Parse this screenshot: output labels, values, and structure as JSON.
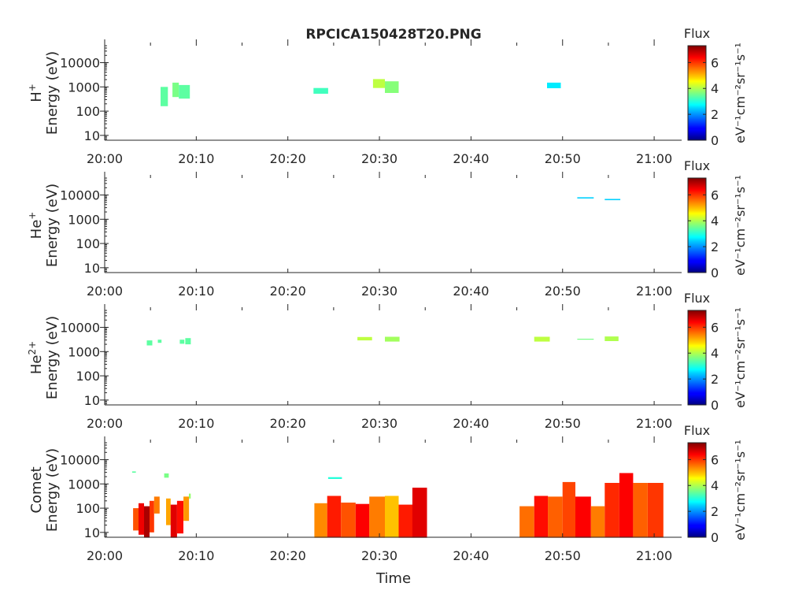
{
  "figure": {
    "title": "RPCICA150428T20.PNG",
    "xlabel": "Time"
  },
  "colorbar": {
    "title": "Flux",
    "label": "eV⁻¹cm⁻²sr⁻¹s⁻¹",
    "ticks": [
      "0",
      "2",
      "4",
      "6"
    ],
    "range": [
      0,
      7.3
    ],
    "colormap": "jet"
  },
  "chart_data": [
    {
      "type": "heatmap",
      "species": "H",
      "species_sup": "+",
      "ylabel": "Energy (eV)",
      "xticks": [
        "20:00",
        "20:10",
        "20:20",
        "20:30",
        "20:40",
        "20:50",
        "21:00"
      ],
      "yticks": [
        "10",
        "100",
        "1000",
        "10000"
      ],
      "xlim_minutes": [
        0,
        63
      ],
      "ylim_log10": [
        0.8,
        4.7
      ],
      "patches": [
        {
          "t0": 6.1,
          "t1": 6.9,
          "e0": 160,
          "e1": 1000,
          "level": 3.4
        },
        {
          "t0": 7.4,
          "t1": 8.1,
          "e0": 380,
          "e1": 1500,
          "level": 3.6
        },
        {
          "t0": 8.1,
          "t1": 9.3,
          "e0": 330,
          "e1": 1200,
          "level": 3.4
        },
        {
          "t0": 22.8,
          "t1": 24.4,
          "e0": 520,
          "e1": 900,
          "level": 3.2
        },
        {
          "t0": 29.3,
          "t1": 30.6,
          "e0": 900,
          "e1": 2100,
          "level": 4.1
        },
        {
          "t0": 30.6,
          "t1": 32.1,
          "e0": 560,
          "e1": 1700,
          "level": 3.7
        },
        {
          "t0": 48.3,
          "t1": 49.8,
          "e0": 880,
          "e1": 1500,
          "level": 2.6
        }
      ]
    },
    {
      "type": "heatmap",
      "species": "He",
      "species_sup": "+",
      "ylabel": "Energy (eV)",
      "xticks": [
        "20:00",
        "20:10",
        "20:20",
        "20:30",
        "20:40",
        "20:50",
        "21:00"
      ],
      "yticks": [
        "10",
        "100",
        "1000",
        "10000"
      ],
      "xlim_minutes": [
        0,
        63
      ],
      "ylim_log10": [
        0.8,
        4.7
      ],
      "patches": [
        {
          "t0": 51.6,
          "t1": 53.4,
          "e0": 7200,
          "e1": 8100,
          "level": 2.4
        },
        {
          "t0": 54.6,
          "t1": 56.3,
          "e0": 6100,
          "e1": 6900,
          "level": 2.4
        }
      ]
    },
    {
      "type": "heatmap",
      "species": "He",
      "species_sup": "2+",
      "ylabel": "Energy (eV)",
      "xticks": [
        "20:00",
        "20:10",
        "20:20",
        "20:30",
        "20:40",
        "20:50",
        "21:00"
      ],
      "yticks": [
        "10",
        "100",
        "1000",
        "10000"
      ],
      "xlim_minutes": [
        0,
        63
      ],
      "ylim_log10": [
        0.8,
        4.7
      ],
      "patches": [
        {
          "t0": 4.6,
          "t1": 5.2,
          "e0": 1800,
          "e1": 2900,
          "level": 3.4
        },
        {
          "t0": 5.8,
          "t1": 6.2,
          "e0": 2300,
          "e1": 3100,
          "level": 3.4
        },
        {
          "t0": 8.2,
          "t1": 8.7,
          "e0": 2100,
          "e1": 3100,
          "level": 3.4
        },
        {
          "t0": 8.8,
          "t1": 9.4,
          "e0": 2000,
          "e1": 3600,
          "level": 3.4
        },
        {
          "t0": 27.6,
          "t1": 29.2,
          "e0": 2900,
          "e1": 4000,
          "level": 4.1
        },
        {
          "t0": 30.6,
          "t1": 32.2,
          "e0": 2600,
          "e1": 4100,
          "level": 3.9
        },
        {
          "t0": 46.9,
          "t1": 48.6,
          "e0": 2600,
          "e1": 4100,
          "level": 4.1
        },
        {
          "t0": 51.6,
          "t1": 53.4,
          "e0": 3100,
          "e1": 3400,
          "level": 3.6
        },
        {
          "t0": 54.6,
          "t1": 56.1,
          "e0": 2700,
          "e1": 4200,
          "level": 4.0
        }
      ]
    },
    {
      "type": "heatmap",
      "species": "Comet",
      "species_sup": "",
      "ylabel": "Energy (eV)",
      "xticks": [
        "20:00",
        "20:10",
        "20:20",
        "20:30",
        "20:40",
        "20:50",
        "21:00"
      ],
      "yticks": [
        "10",
        "100",
        "1000",
        "10000"
      ],
      "xlim_minutes": [
        0,
        63
      ],
      "ylim_log10": [
        0.8,
        4.7
      ],
      "patches": [
        {
          "t0": 3.0,
          "t1": 3.4,
          "e0": 2900,
          "e1": 3300,
          "level": 3.4
        },
        {
          "t0": 3.1,
          "t1": 3.7,
          "e0": 12,
          "e1": 100,
          "level": 5.8
        },
        {
          "t0": 3.7,
          "t1": 4.3,
          "e0": 8,
          "e1": 160,
          "level": 6.5
        },
        {
          "t0": 4.3,
          "t1": 4.9,
          "e0": 6,
          "e1": 120,
          "level": 7.0
        },
        {
          "t0": 4.9,
          "t1": 5.4,
          "e0": 10,
          "e1": 200,
          "level": 6.0
        },
        {
          "t0": 5.4,
          "t1": 6.0,
          "e0": 60,
          "e1": 300,
          "level": 5.5
        },
        {
          "t0": 6.5,
          "t1": 7.0,
          "e0": 1800,
          "e1": 2700,
          "level": 3.6
        },
        {
          "t0": 6.7,
          "t1": 7.2,
          "e0": 20,
          "e1": 250,
          "level": 5.2
        },
        {
          "t0": 7.2,
          "t1": 7.9,
          "e0": 6,
          "e1": 140,
          "level": 6.6
        },
        {
          "t0": 7.9,
          "t1": 8.6,
          "e0": 9,
          "e1": 200,
          "level": 6.3
        },
        {
          "t0": 8.6,
          "t1": 9.2,
          "e0": 30,
          "e1": 300,
          "level": 5.3
        },
        {
          "t0": 9.2,
          "t1": 9.4,
          "e0": 250,
          "e1": 400,
          "level": 3.8
        },
        {
          "t0": 22.9,
          "t1": 24.3,
          "e0": 6,
          "e1": 160,
          "level": 5.4
        },
        {
          "t0": 24.3,
          "t1": 25.8,
          "e0": 6,
          "e1": 320,
          "level": 6.2
        },
        {
          "t0": 24.4,
          "t1": 25.9,
          "e0": 1600,
          "e1": 1900,
          "level": 3.0
        },
        {
          "t0": 25.8,
          "t1": 27.4,
          "e0": 6,
          "e1": 170,
          "level": 5.8
        },
        {
          "t0": 27.4,
          "t1": 28.9,
          "e0": 6,
          "e1": 150,
          "level": 6.4
        },
        {
          "t0": 28.9,
          "t1": 30.6,
          "e0": 6,
          "e1": 300,
          "level": 5.5
        },
        {
          "t0": 30.6,
          "t1": 32.1,
          "e0": 6,
          "e1": 320,
          "level": 5.0
        },
        {
          "t0": 32.1,
          "t1": 33.6,
          "e0": 6,
          "e1": 140,
          "level": 6.2
        },
        {
          "t0": 33.6,
          "t1": 35.2,
          "e0": 6,
          "e1": 700,
          "level": 6.6
        },
        {
          "t0": 45.3,
          "t1": 46.9,
          "e0": 6,
          "e1": 120,
          "level": 5.6
        },
        {
          "t0": 46.9,
          "t1": 48.4,
          "e0": 6,
          "e1": 320,
          "level": 6.3
        },
        {
          "t0": 48.4,
          "t1": 50.0,
          "e0": 6,
          "e1": 300,
          "level": 5.7
        },
        {
          "t0": 50.0,
          "t1": 51.4,
          "e0": 6,
          "e1": 1200,
          "level": 5.9
        },
        {
          "t0": 51.4,
          "t1": 53.1,
          "e0": 6,
          "e1": 300,
          "level": 6.4
        },
        {
          "t0": 53.1,
          "t1": 54.6,
          "e0": 6,
          "e1": 120,
          "level": 5.5
        },
        {
          "t0": 54.6,
          "t1": 56.2,
          "e0": 6,
          "e1": 1100,
          "level": 6.1
        },
        {
          "t0": 56.2,
          "t1": 57.7,
          "e0": 6,
          "e1": 2800,
          "level": 6.4
        },
        {
          "t0": 57.7,
          "t1": 59.3,
          "e0": 6,
          "e1": 1100,
          "level": 5.7
        },
        {
          "t0": 59.3,
          "t1": 61.0,
          "e0": 6,
          "e1": 1100,
          "level": 6.0
        }
      ]
    }
  ]
}
